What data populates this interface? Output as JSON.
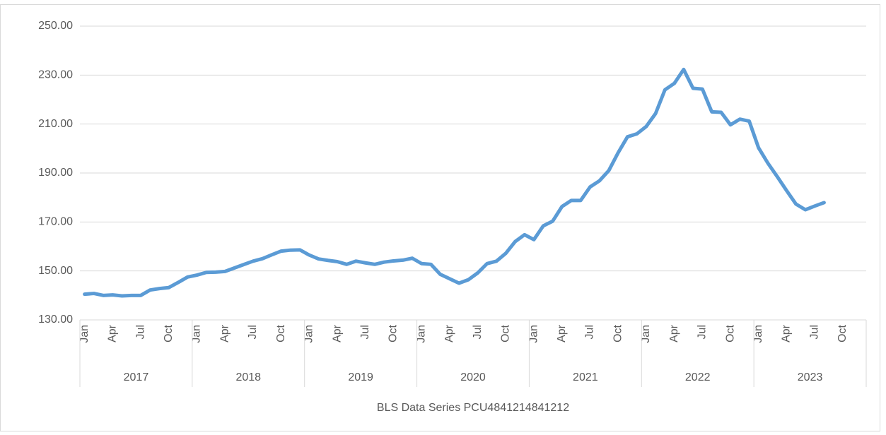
{
  "chart_data": {
    "type": "line",
    "x_axis_title": "BLS Data Series PCU4841214841212",
    "categories": [
      "Jan",
      null,
      null,
      "Apr",
      null,
      null,
      "Jul",
      null,
      null,
      "Oct",
      null,
      null,
      "Jan",
      null,
      null,
      "Apr",
      null,
      null,
      "Jul",
      null,
      null,
      "Oct",
      null,
      null,
      "Jan",
      null,
      null,
      "Apr",
      null,
      null,
      "Jul",
      null,
      null,
      "Oct",
      null,
      null,
      "Jan",
      null,
      null,
      "Apr",
      null,
      null,
      "Jul",
      null,
      null,
      "Oct",
      null,
      null,
      "Jan",
      null,
      null,
      "Apr",
      null,
      null,
      "Jul",
      null,
      null,
      "Oct",
      null,
      null,
      "Jan",
      null,
      null,
      "Apr",
      null,
      null,
      "Jul",
      null,
      null,
      "Oct",
      null,
      null,
      "Jan",
      null,
      null,
      "Apr",
      null,
      null,
      "Jul",
      null,
      null,
      "Oct",
      null,
      null
    ],
    "year_groups": [
      "2017",
      "2018",
      "2019",
      "2020",
      "2021",
      "2022",
      "2023"
    ],
    "color": "#5b9bd5",
    "values": [
      140.5,
      140.8,
      140.0,
      140.2,
      139.8,
      140.0,
      140.0,
      142.2,
      142.8,
      143.2,
      145.3,
      147.5,
      148.3,
      149.4,
      149.5,
      149.8,
      151.2,
      152.6,
      154.0,
      155.0,
      156.6,
      158.1,
      158.5,
      158.6,
      156.5,
      154.9,
      154.3,
      153.8,
      152.7,
      154.0,
      153.3,
      152.7,
      153.6,
      154.1,
      154.4,
      155.2,
      153.0,
      152.7,
      148.6,
      146.8,
      145.0,
      146.4,
      149.2,
      153.0,
      154.0,
      157.2,
      162.0,
      164.8,
      162.8,
      168.4,
      170.3,
      176.3,
      178.8,
      178.8,
      184.3,
      186.8,
      191.0,
      198.3,
      204.8,
      206.0,
      209.0,
      214.3,
      224.0,
      226.6,
      232.3,
      224.6,
      224.3,
      215.0,
      214.8,
      209.7,
      212.0,
      211.2,
      200.3,
      194.0,
      188.5,
      182.8,
      177.3,
      175.0,
      176.5,
      177.9,
      null,
      null,
      null,
      null
    ],
    "ylim": [
      130,
      250
    ],
    "yticks": [
      {
        "value": 130,
        "label": "130.00"
      },
      {
        "value": 150,
        "label": "150.00"
      },
      {
        "value": 170,
        "label": "170.00"
      },
      {
        "value": 190,
        "label": "190.00"
      },
      {
        "value": 210,
        "label": "210.00"
      },
      {
        "value": 230,
        "label": "230.00"
      },
      {
        "value": 250,
        "label": "250.00"
      }
    ],
    "grid": true
  }
}
